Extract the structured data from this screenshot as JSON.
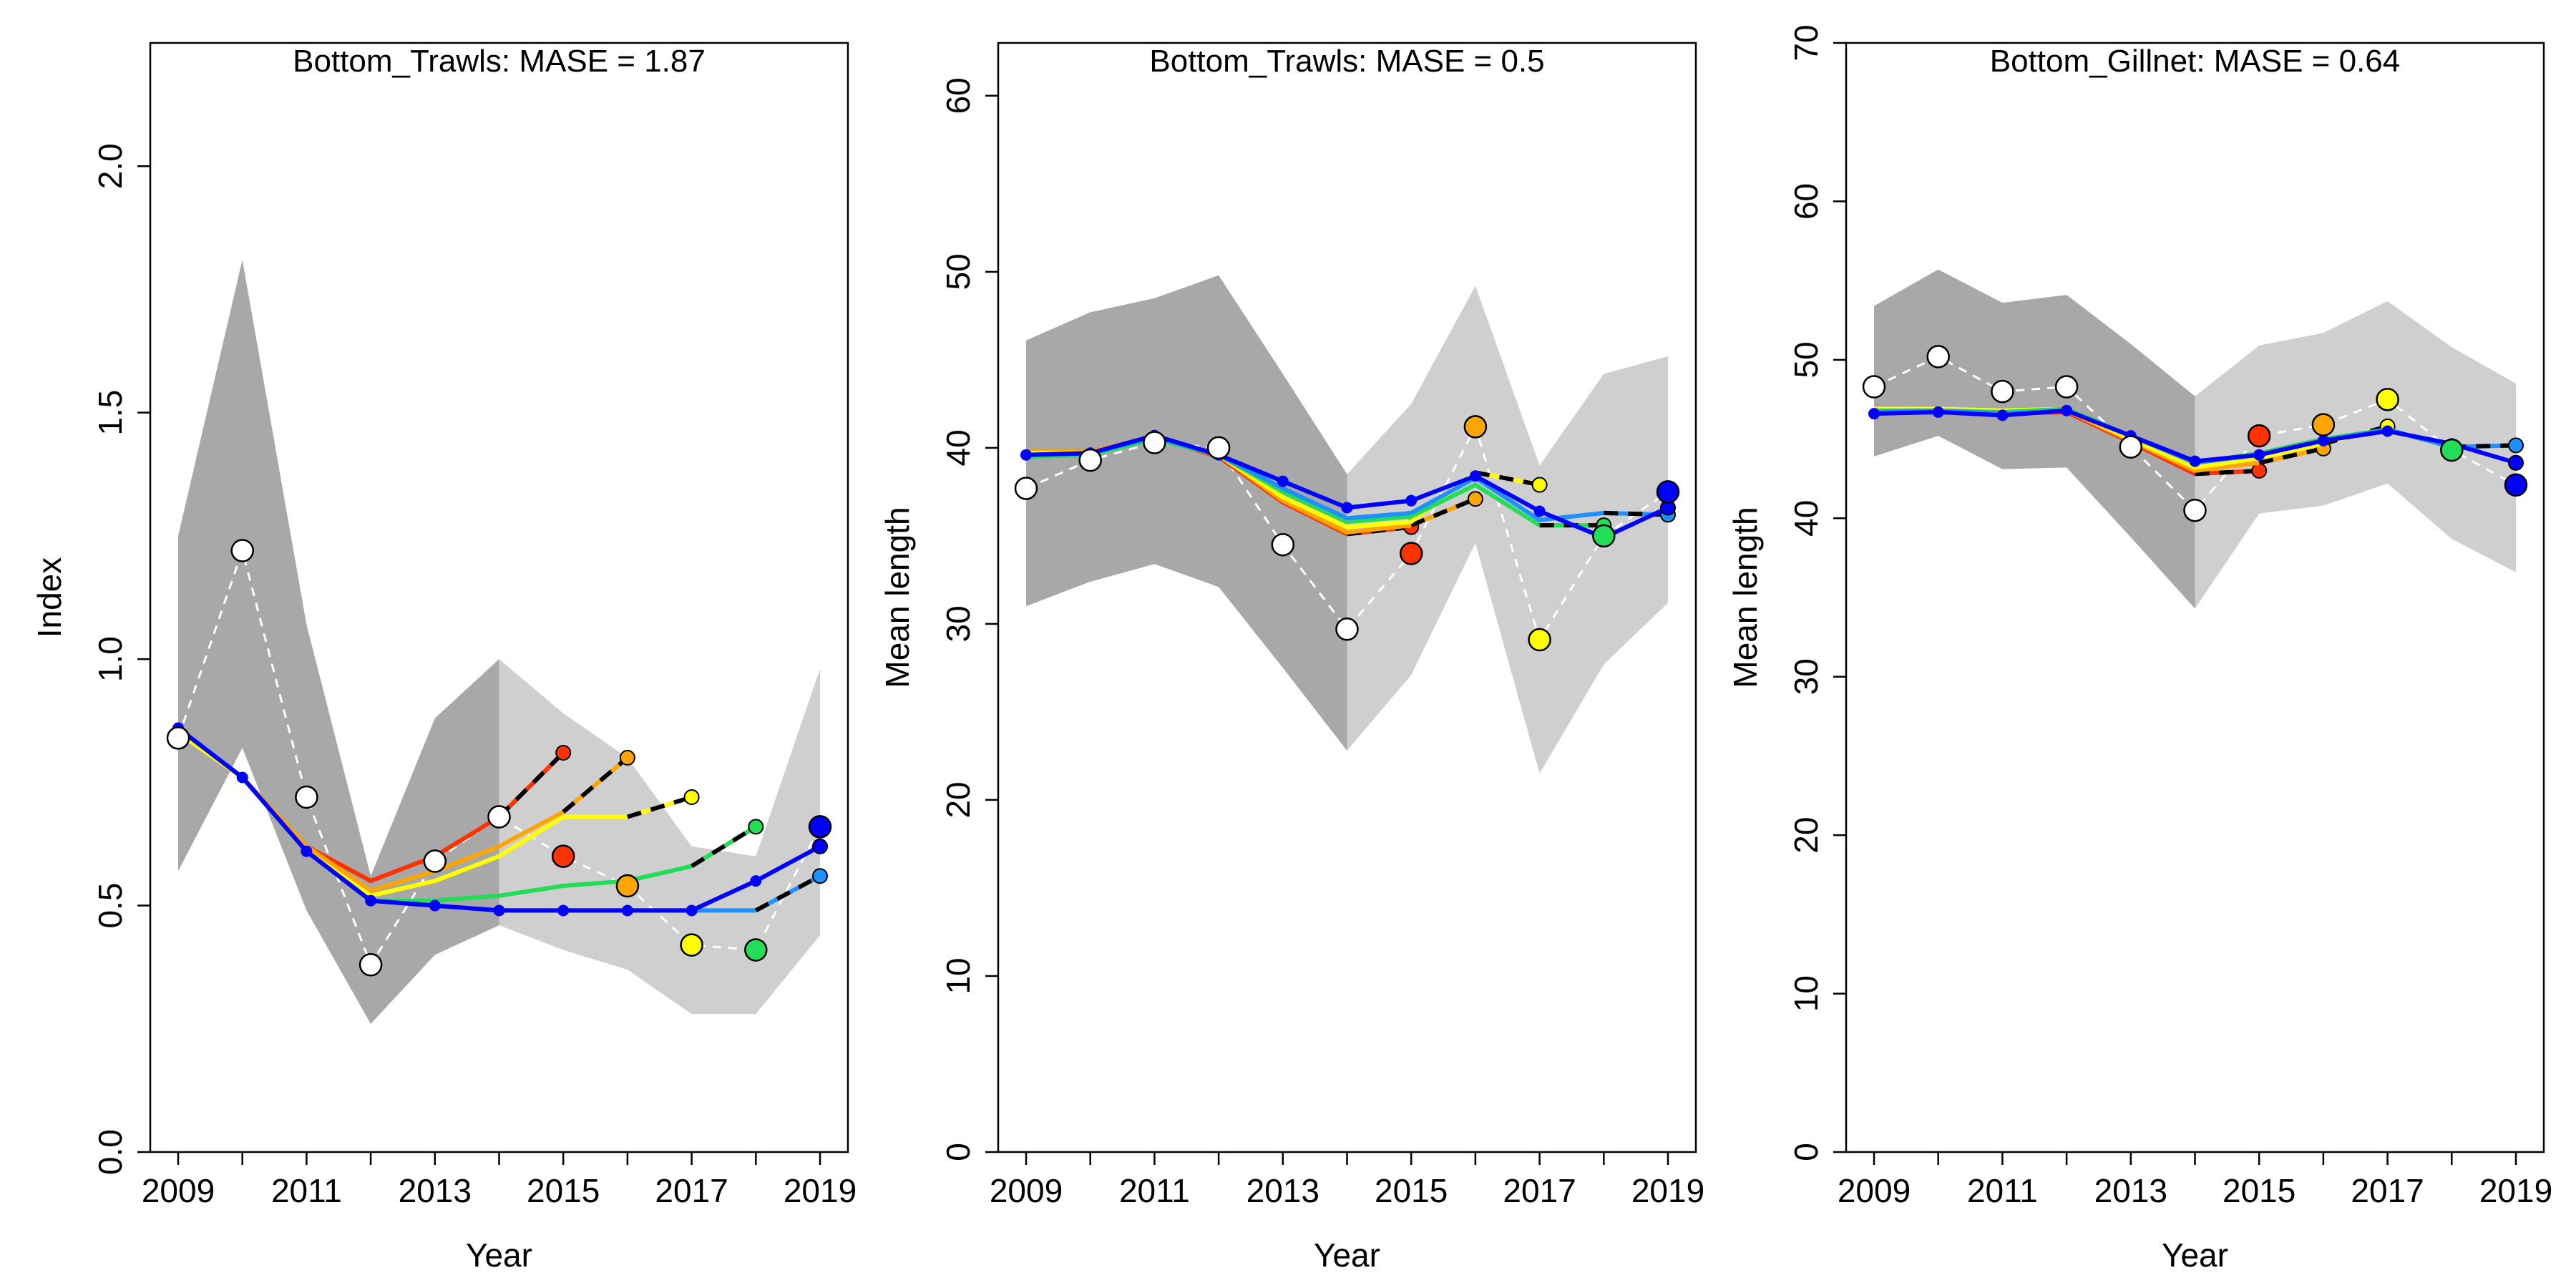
{
  "colors": {
    "obs_fill": "#ffffff",
    "obs_line": "#ffffff",
    "band_past": "#a8a8a8",
    "band_future": "#cfcfcf",
    "forecast_tail": "#000000",
    "peel_0": "#0000ff",
    "peel_1": "#1e90ff",
    "peel_2": "#22dd55",
    "peel_3": "#ffff00",
    "peel_4": "#ffa500",
    "peel_5": "#ff3300"
  },
  "chart_data": [
    {
      "type": "line",
      "title": "Bottom_Trawls: MASE = 1.87",
      "xlabel": "Year",
      "ylabel": "Index",
      "xlim": [
        2009,
        2019
      ],
      "ylim": [
        0,
        2.25
      ],
      "xticks": [
        2009,
        2011,
        2013,
        2015,
        2017,
        2019
      ],
      "xtick_labels": [
        "2009",
        "2011",
        "2013",
        "2015",
        "2017",
        "2019"
      ],
      "yticks": [
        0,
        0.5,
        1,
        1.5,
        2
      ],
      "ytick_labels": [
        "0.0",
        "0.5",
        "1.0",
        "1.5",
        "2.0"
      ],
      "grid": false,
      "legend": "none",
      "band_split_year": 2014,
      "ci_band": {
        "x": [
          2009,
          2010,
          2011,
          2012,
          2013,
          2014,
          2015,
          2016,
          2017,
          2018,
          2019
        ],
        "lower": [
          0.57,
          0.82,
          0.49,
          0.26,
          0.4,
          0.46,
          0.41,
          0.37,
          0.28,
          0.28,
          0.44
        ],
        "upper": [
          1.25,
          1.81,
          1.07,
          0.56,
          0.88,
          1.0,
          0.89,
          0.8,
          0.62,
          0.6,
          0.98
        ]
      },
      "observed": {
        "x": [
          2009,
          2010,
          2011,
          2012,
          2013,
          2014,
          2015,
          2016,
          2017,
          2018,
          2019
        ],
        "y": [
          0.84,
          1.22,
          0.72,
          0.38,
          0.59,
          0.68,
          0.6,
          0.54,
          0.42,
          0.41,
          0.66
        ]
      },
      "series": [
        {
          "color_key": "peel_0",
          "x": [
            2009,
            2010,
            2011,
            2012,
            2013,
            2014,
            2015,
            2016,
            2017,
            2018,
            2019
          ],
          "y": [
            0.86,
            0.76,
            0.61,
            0.51,
            0.5,
            0.49,
            0.49,
            0.49,
            0.49,
            0.55,
            0.62
          ],
          "end_year": 2019,
          "predicted": {
            "x": 2019,
            "y": 0.62
          },
          "observed_point": {
            "x": 2019,
            "y": 0.66
          }
        },
        {
          "color_key": "peel_1",
          "x": [
            2009,
            2010,
            2011,
            2012,
            2013,
            2014,
            2015,
            2016,
            2017,
            2018
          ],
          "y": [
            0.86,
            0.76,
            0.61,
            0.51,
            0.5,
            0.49,
            0.49,
            0.49,
            0.49,
            0.49
          ],
          "end_year": 2018,
          "tail": {
            "x": [
              2018,
              2019
            ],
            "y": [
              0.49,
              0.56
            ]
          },
          "predicted": {
            "x": 2019,
            "y": 0.56
          }
        },
        {
          "color_key": "peel_2",
          "x": [
            2009,
            2010,
            2011,
            2012,
            2013,
            2014,
            2015,
            2016,
            2017
          ],
          "y": [
            0.86,
            0.76,
            0.61,
            0.51,
            0.51,
            0.52,
            0.54,
            0.55,
            0.58
          ],
          "end_year": 2017,
          "tail": {
            "x": [
              2017,
              2018
            ],
            "y": [
              0.58,
              0.66
            ]
          },
          "predicted": {
            "x": 2018,
            "y": 0.66
          },
          "observed_point": {
            "x": 2018,
            "y": 0.41
          }
        },
        {
          "color_key": "peel_3",
          "x": [
            2009,
            2010,
            2011,
            2012,
            2013,
            2014,
            2015,
            2016
          ],
          "y": [
            0.85,
            0.76,
            0.61,
            0.52,
            0.55,
            0.6,
            0.68,
            0.68
          ],
          "end_year": 2016,
          "tail": {
            "x": [
              2016,
              2017
            ],
            "y": [
              0.68,
              0.72
            ]
          },
          "predicted": {
            "x": 2017,
            "y": 0.72
          },
          "observed_point": {
            "x": 2017,
            "y": 0.42
          }
        },
        {
          "color_key": "peel_4",
          "x": [
            2009,
            2010,
            2011,
            2012,
            2013,
            2014,
            2015
          ],
          "y": [
            0.85,
            0.76,
            0.62,
            0.53,
            0.57,
            0.62,
            0.69
          ],
          "end_year": 2015,
          "tail": {
            "x": [
              2015,
              2016
            ],
            "y": [
              0.69,
              0.8
            ]
          },
          "predicted": {
            "x": 2016,
            "y": 0.8
          },
          "observed_point": {
            "x": 2016,
            "y": 0.54
          }
        },
        {
          "color_key": "peel_5",
          "x": [
            2009,
            2010,
            2011,
            2012,
            2013,
            2014
          ],
          "y": [
            0.85,
            0.76,
            0.62,
            0.55,
            0.6,
            0.68
          ],
          "end_year": 2014,
          "tail": {
            "x": [
              2014,
              2015
            ],
            "y": [
              0.68,
              0.81
            ]
          },
          "predicted": {
            "x": 2015,
            "y": 0.81
          },
          "observed_point": {
            "x": 2015,
            "y": 0.6
          }
        }
      ]
    },
    {
      "type": "line",
      "title": "Bottom_Trawls: MASE = 0.5",
      "xlabel": "Year",
      "ylabel": "Mean length",
      "xlim": [
        2009,
        2019
      ],
      "ylim": [
        0,
        63
      ],
      "xticks": [
        2009,
        2011,
        2013,
        2015,
        2017,
        2019
      ],
      "xtick_labels": [
        "2009",
        "2011",
        "2013",
        "2015",
        "2017",
        "2019"
      ],
      "yticks": [
        0,
        10,
        20,
        30,
        40,
        50,
        60
      ],
      "ytick_labels": [
        "0",
        "10",
        "20",
        "30",
        "40",
        "50",
        "60"
      ],
      "grid": false,
      "legend": "none",
      "band_split_year": 2014,
      "ci_band": {
        "x": [
          2009,
          2010,
          2011,
          2012,
          2013,
          2014,
          2015,
          2016,
          2017,
          2018,
          2019
        ],
        "lower": [
          31.0,
          32.4,
          33.4,
          32.1,
          27.5,
          22.8,
          27.1,
          34.6,
          21.5,
          27.7,
          31.2
        ],
        "upper": [
          46.1,
          47.7,
          48.5,
          49.8,
          44.2,
          38.5,
          42.5,
          49.2,
          39.0,
          44.2,
          45.2
        ]
      },
      "observed": {
        "x": [
          2009,
          2010,
          2011,
          2012,
          2013,
          2014,
          2015,
          2016,
          2017,
          2018,
          2019
        ],
        "y": [
          37.7,
          39.3,
          40.3,
          40.0,
          34.5,
          29.7,
          34.0,
          41.2,
          29.1,
          35.0,
          37.5
        ]
      },
      "series": [
        {
          "color_key": "peel_0",
          "x": [
            2009,
            2010,
            2011,
            2012,
            2013,
            2014,
            2015,
            2016,
            2017,
            2018,
            2019
          ],
          "y": [
            39.6,
            39.7,
            40.7,
            39.6,
            38.1,
            36.6,
            37.0,
            38.4,
            36.4,
            34.9,
            36.6
          ],
          "end_year": 2019,
          "predicted": {
            "x": 2019,
            "y": 36.6
          },
          "observed_point": {
            "x": 2019,
            "y": 37.5
          }
        },
        {
          "color_key": "peel_1",
          "x": [
            2009,
            2010,
            2011,
            2012,
            2013,
            2014,
            2015,
            2016,
            2017,
            2018
          ],
          "y": [
            39.6,
            39.7,
            40.6,
            39.6,
            37.7,
            36.0,
            36.3,
            38.3,
            35.9,
            36.3
          ],
          "end_year": 2018,
          "tail": {
            "x": [
              2018,
              2019
            ],
            "y": [
              36.3,
              36.2
            ]
          },
          "predicted": {
            "x": 2019,
            "y": 36.2
          }
        },
        {
          "color_key": "peel_2",
          "x": [
            2009,
            2010,
            2011,
            2012,
            2013,
            2014,
            2015,
            2016,
            2017
          ],
          "y": [
            39.5,
            39.6,
            40.5,
            39.6,
            37.5,
            35.8,
            36.1,
            37.9,
            35.6
          ],
          "end_year": 2017,
          "tail": {
            "x": [
              2017,
              2018
            ],
            "y": [
              35.6,
              35.6
            ]
          },
          "predicted": {
            "x": 2018,
            "y": 35.6
          },
          "observed_point": {
            "x": 2018,
            "y": 35.0
          }
        },
        {
          "color_key": "peel_3",
          "x": [
            2009,
            2010,
            2011,
            2012,
            2013,
            2014,
            2015,
            2016
          ],
          "y": [
            39.7,
            39.7,
            40.6,
            39.6,
            37.2,
            35.5,
            35.8,
            38.6
          ],
          "end_year": 2016,
          "tail": {
            "x": [
              2016,
              2017
            ],
            "y": [
              38.6,
              37.9
            ]
          },
          "predicted": {
            "x": 2017,
            "y": 37.9
          },
          "observed_point": {
            "x": 2017,
            "y": 29.1
          }
        },
        {
          "color_key": "peel_4",
          "x": [
            2009,
            2010,
            2011,
            2012,
            2013,
            2014,
            2015
          ],
          "y": [
            39.8,
            39.8,
            40.6,
            39.6,
            37.0,
            35.2,
            35.6
          ],
          "end_year": 2015,
          "tail": {
            "x": [
              2015,
              2016
            ],
            "y": [
              35.6,
              37.1
            ]
          },
          "predicted": {
            "x": 2016,
            "y": 37.1
          },
          "observed_point": {
            "x": 2016,
            "y": 41.2
          }
        },
        {
          "color_key": "peel_5",
          "x": [
            2009,
            2010,
            2011,
            2012,
            2013,
            2014
          ],
          "y": [
            39.8,
            39.8,
            40.6,
            39.5,
            36.9,
            35.1
          ],
          "end_year": 2014,
          "tail": {
            "x": [
              2014,
              2015
            ],
            "y": [
              35.1,
              35.5
            ]
          },
          "predicted": {
            "x": 2015,
            "y": 35.5
          },
          "observed_point": {
            "x": 2015,
            "y": 34.0
          }
        }
      ]
    },
    {
      "type": "line",
      "title": "Bottom_Gillnet: MASE = 0.64",
      "xlabel": "Year",
      "ylabel": "Mean length",
      "xlim": [
        2009,
        2019
      ],
      "ylim": [
        0,
        70
      ],
      "xticks": [
        2009,
        2011,
        2013,
        2015,
        2017,
        2019
      ],
      "xtick_labels": [
        "2009",
        "2011",
        "2013",
        "2015",
        "2017",
        "2019"
      ],
      "yticks": [
        0,
        10,
        20,
        30,
        40,
        50,
        60,
        70
      ],
      "ytick_labels": [
        "0",
        "10",
        "20",
        "30",
        "40",
        "50",
        "60",
        "70"
      ],
      "grid": false,
      "legend": "none",
      "band_split_year": 2014,
      "ci_band": {
        "x": [
          2009,
          2010,
          2011,
          2012,
          2013,
          2014,
          2015,
          2016,
          2017,
          2018,
          2019
        ],
        "lower": [
          43.9,
          45.2,
          43.1,
          43.2,
          38.8,
          34.3,
          40.3,
          40.8,
          42.2,
          38.7,
          36.6
        ],
        "upper": [
          53.4,
          55.7,
          53.6,
          54.1,
          51.0,
          47.7,
          50.9,
          51.7,
          53.7,
          50.8,
          48.5
        ]
      },
      "observed": {
        "x": [
          2009,
          2010,
          2011,
          2012,
          2013,
          2014,
          2015,
          2016,
          2017,
          2018,
          2019
        ],
        "y": [
          48.3,
          50.2,
          48.0,
          48.3,
          44.5,
          40.5,
          45.2,
          45.9,
          47.5,
          44.3,
          42.1
        ]
      },
      "series": [
        {
          "color_key": "peel_0",
          "x": [
            2009,
            2010,
            2011,
            2012,
            2013,
            2014,
            2015,
            2016,
            2017,
            2018,
            2019
          ],
          "y": [
            46.6,
            46.7,
            46.5,
            46.8,
            45.2,
            43.6,
            44.0,
            44.9,
            45.5,
            44.7,
            43.5
          ],
          "end_year": 2019,
          "predicted": {
            "x": 2019,
            "y": 43.5
          },
          "observed_point": {
            "x": 2019,
            "y": 42.1
          }
        },
        {
          "color_key": "peel_1",
          "x": [
            2009,
            2010,
            2011,
            2012,
            2013,
            2014,
            2015,
            2016,
            2017,
            2018
          ],
          "y": [
            46.7,
            46.8,
            46.6,
            46.8,
            45.2,
            43.5,
            44.0,
            44.9,
            45.6,
            44.5
          ],
          "end_year": 2018,
          "tail": {
            "x": [
              2018,
              2019
            ],
            "y": [
              44.5,
              44.6
            ]
          },
          "predicted": {
            "x": 2019,
            "y": 44.6
          }
        },
        {
          "color_key": "peel_2",
          "x": [
            2009,
            2010,
            2011,
            2012,
            2013,
            2014,
            2015,
            2016,
            2017
          ],
          "y": [
            46.8,
            46.8,
            46.7,
            46.9,
            45.2,
            43.5,
            44.1,
            45.0,
            45.6
          ],
          "end_year": 2017,
          "tail": {
            "x": [
              2017,
              2018
            ],
            "y": [
              45.6,
              44.5
            ]
          },
          "predicted": {
            "x": 2018,
            "y": 44.5
          },
          "observed_point": {
            "x": 2018,
            "y": 44.3
          }
        },
        {
          "color_key": "peel_3",
          "x": [
            2009,
            2010,
            2011,
            2012,
            2013,
            2014,
            2015,
            2016
          ],
          "y": [
            46.9,
            46.9,
            46.8,
            46.9,
            45.0,
            43.2,
            43.8,
            44.7
          ],
          "end_year": 2016,
          "tail": {
            "x": [
              2016,
              2017
            ],
            "y": [
              44.7,
              45.8
            ]
          },
          "predicted": {
            "x": 2017,
            "y": 45.8
          },
          "observed_point": {
            "x": 2017,
            "y": 47.5
          }
        },
        {
          "color_key": "peel_4",
          "x": [
            2009,
            2010,
            2011,
            2012,
            2013,
            2014,
            2015
          ],
          "y": [
            46.8,
            46.8,
            46.7,
            46.8,
            44.9,
            43.0,
            43.5
          ],
          "end_year": 2015,
          "tail": {
            "x": [
              2015,
              2016
            ],
            "y": [
              43.5,
              44.4
            ]
          },
          "predicted": {
            "x": 2016,
            "y": 44.4
          },
          "observed_point": {
            "x": 2016,
            "y": 45.9
          }
        },
        {
          "color_key": "peel_5",
          "x": [
            2009,
            2010,
            2011,
            2012,
            2013,
            2014
          ],
          "y": [
            46.7,
            46.7,
            46.6,
            46.7,
            44.8,
            42.8
          ],
          "end_year": 2014,
          "tail": {
            "x": [
              2014,
              2015
            ],
            "y": [
              42.8,
              43.0
            ]
          },
          "predicted": {
            "x": 2015,
            "y": 43.0
          },
          "observed_point": {
            "x": 2015,
            "y": 45.2
          }
        }
      ]
    }
  ]
}
